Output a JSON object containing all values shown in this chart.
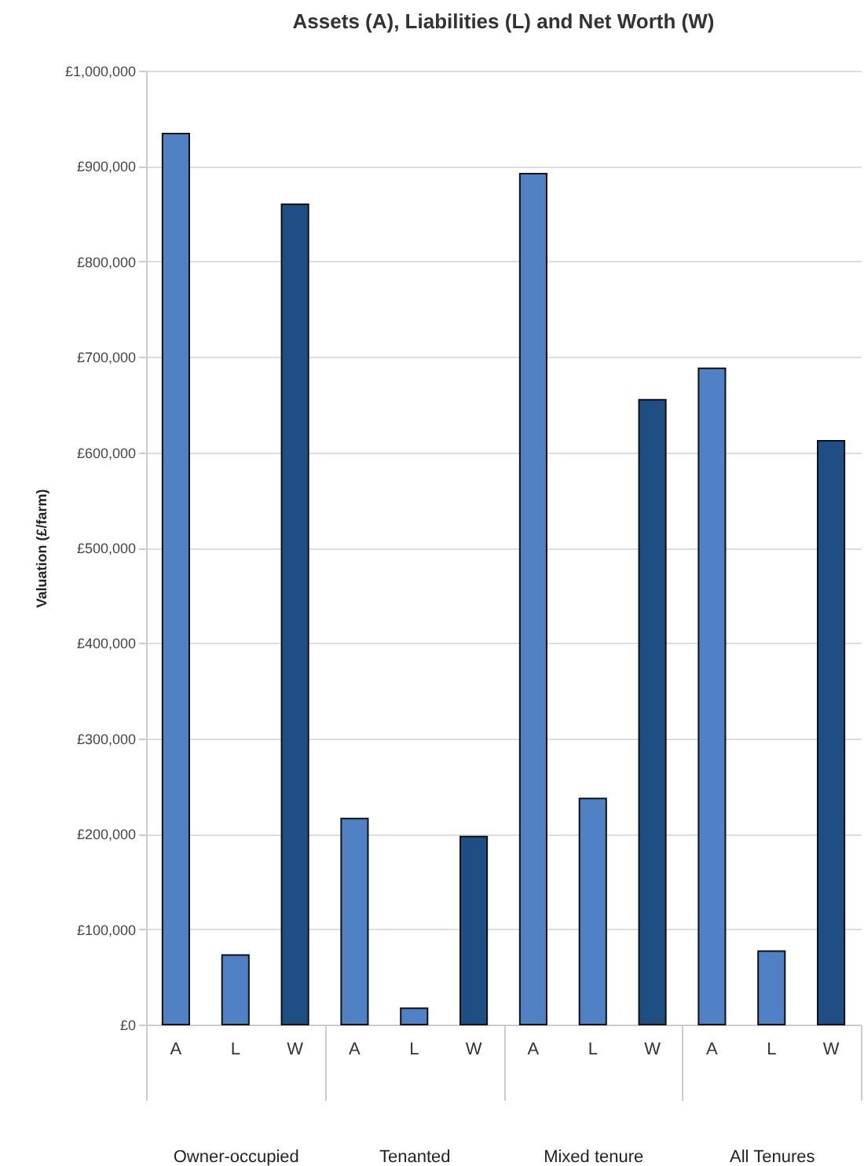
{
  "chart_data": {
    "type": "bar",
    "title": "Assets (A), Liabilities (L) and Net Worth (W)",
    "ylabel": "Valuation (£/farm)",
    "categories": [
      "Owner-occupied",
      "Tenanted",
      "Mixed tenure",
      "All Tenures"
    ],
    "series": [
      {
        "name": "A",
        "color": "#4f81c4",
        "values": [
          934000,
          216000,
          892000,
          688000
        ]
      },
      {
        "name": "L",
        "color": "#4f81c4",
        "values": [
          73000,
          17000,
          237000,
          77000
        ]
      },
      {
        "name": "W",
        "color": "#1f4e85",
        "values": [
          860000,
          197000,
          655000,
          612000
        ]
      }
    ],
    "ylim": [
      0,
      1000000
    ],
    "yticks": [
      {
        "value": 0,
        "label": "£0"
      },
      {
        "value": 100000,
        "label": "£100,000"
      },
      {
        "value": 200000,
        "label": "£200,000"
      },
      {
        "value": 300000,
        "label": "£300,000"
      },
      {
        "value": 400000,
        "label": "£400,000"
      },
      {
        "value": 500000,
        "label": "£500,000"
      },
      {
        "value": 600000,
        "label": "£600,000"
      },
      {
        "value": 700000,
        "label": "£700,000"
      },
      {
        "value": 800000,
        "label": "£800,000"
      },
      {
        "value": 900000,
        "label": "£900,000"
      },
      {
        "value": 1000000,
        "label": "£1,000,000"
      }
    ],
    "grid": "y"
  }
}
